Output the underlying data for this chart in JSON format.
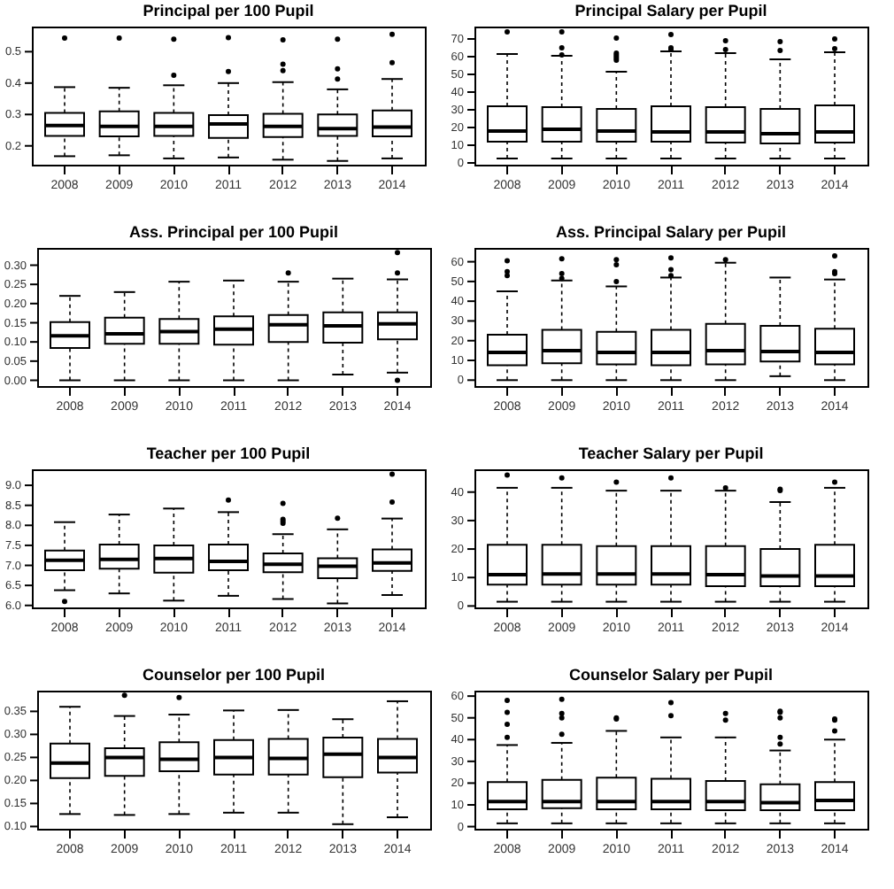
{
  "chart_data": [
    {
      "type": "box",
      "title": "Principal per 100 Pupil",
      "categories": [
        "2008",
        "2009",
        "2010",
        "2011",
        "2012",
        "2013",
        "2014"
      ],
      "ylim": [
        0.14,
        0.58
      ],
      "yticks": [
        {
          "value": 0.2,
          "label": "0.2"
        },
        {
          "value": 0.3,
          "label": "0.3"
        },
        {
          "value": 0.4,
          "label": "0.4"
        },
        {
          "value": 0.5,
          "label": "0.5"
        }
      ],
      "grid": false,
      "boxes": [
        {
          "low": 0.167,
          "q1": 0.232,
          "median": 0.265,
          "q3": 0.305,
          "high": 0.387,
          "outliers": [
            0.543
          ]
        },
        {
          "low": 0.17,
          "q1": 0.23,
          "median": 0.262,
          "q3": 0.31,
          "high": 0.385,
          "outliers": [
            0.543
          ]
        },
        {
          "low": 0.16,
          "q1": 0.232,
          "median": 0.262,
          "q3": 0.305,
          "high": 0.393,
          "outliers": [
            0.425,
            0.54
          ]
        },
        {
          "low": 0.163,
          "q1": 0.225,
          "median": 0.27,
          "q3": 0.298,
          "high": 0.4,
          "outliers": [
            0.437,
            0.545
          ]
        },
        {
          "low": 0.156,
          "q1": 0.228,
          "median": 0.262,
          "q3": 0.302,
          "high": 0.403,
          "outliers": [
            0.44,
            0.46,
            0.538
          ]
        },
        {
          "low": 0.152,
          "q1": 0.232,
          "median": 0.255,
          "q3": 0.3,
          "high": 0.38,
          "outliers": [
            0.413,
            0.445,
            0.54
          ]
        },
        {
          "low": 0.16,
          "q1": 0.23,
          "median": 0.26,
          "q3": 0.313,
          "high": 0.413,
          "outliers": [
            0.465,
            0.555
          ]
        }
      ]
    },
    {
      "type": "box",
      "title": "Principal Salary per Pupil",
      "categories": [
        "2008",
        "2009",
        "2010",
        "2011",
        "2012",
        "2013",
        "2014"
      ],
      "ylim": [
        -1,
        77
      ],
      "yticks": [
        0,
        10,
        20,
        30,
        40,
        50,
        60,
        70
      ],
      "grid": false,
      "boxes": [
        {
          "low": 2.5,
          "q1": 12,
          "median": 18,
          "q3": 32,
          "high": 61.5,
          "outliers": [
            74
          ]
        },
        {
          "low": 2.5,
          "q1": 12,
          "median": 19,
          "q3": 31.5,
          "high": 60.5,
          "outliers": [
            61,
            65,
            74
          ]
        },
        {
          "low": 2.5,
          "q1": 12,
          "median": 18,
          "q3": 30.5,
          "high": 51.5,
          "outliers": [
            58,
            59,
            60,
            61,
            62,
            70.5
          ]
        },
        {
          "low": 2.5,
          "q1": 12,
          "median": 17.5,
          "q3": 32,
          "high": 63,
          "outliers": [
            64,
            65,
            72.5
          ]
        },
        {
          "low": 2.5,
          "q1": 11.5,
          "median": 17.5,
          "q3": 31.5,
          "high": 62,
          "outliers": [
            64,
            69
          ]
        },
        {
          "low": 2.5,
          "q1": 11,
          "median": 16.5,
          "q3": 30.5,
          "high": 58.5,
          "outliers": [
            63.5,
            68.5
          ]
        },
        {
          "low": 2.5,
          "q1": 11.5,
          "median": 17.5,
          "q3": 32.5,
          "high": 62.5,
          "outliers": [
            64.5,
            70
          ]
        }
      ]
    },
    {
      "type": "box",
      "title": "Ass. Principal per 100 Pupil",
      "categories": [
        "2008",
        "2009",
        "2010",
        "2011",
        "2012",
        "2013",
        "2014"
      ],
      "ylim": [
        -0.015,
        0.345
      ],
      "yticks": [
        {
          "value": 0,
          "label": "0.00"
        },
        {
          "value": 0.05,
          "label": "0.05"
        },
        {
          "value": 0.1,
          "label": "0.10"
        },
        {
          "value": 0.15,
          "label": "0.15"
        },
        {
          "value": 0.2,
          "label": "0.20"
        },
        {
          "value": 0.25,
          "label": "0.25"
        },
        {
          "value": 0.3,
          "label": "0.30"
        }
      ],
      "grid": false,
      "boxes": [
        {
          "low": 0,
          "q1": 0.084,
          "median": 0.116,
          "q3": 0.152,
          "high": 0.22
        },
        {
          "low": 0,
          "q1": 0.095,
          "median": 0.121,
          "q3": 0.163,
          "high": 0.23
        },
        {
          "low": 0,
          "q1": 0.095,
          "median": 0.127,
          "q3": 0.16,
          "high": 0.257
        },
        {
          "low": 0,
          "q1": 0.093,
          "median": 0.133,
          "q3": 0.167,
          "high": 0.26
        },
        {
          "low": 0,
          "q1": 0.1,
          "median": 0.145,
          "q3": 0.17,
          "high": 0.257,
          "outliers": [
            0.28
          ]
        },
        {
          "low": 0.015,
          "q1": 0.098,
          "median": 0.142,
          "q3": 0.177,
          "high": 0.265
        },
        {
          "low": 0.02,
          "q1": 0.107,
          "median": 0.147,
          "q3": 0.177,
          "high": 0.263,
          "outliers": [
            0,
            0.28,
            0.333
          ]
        }
      ]
    },
    {
      "type": "box",
      "title": "Ass. Principal Salary per Pupil",
      "categories": [
        "2008",
        "2009",
        "2010",
        "2011",
        "2012",
        "2013",
        "2014"
      ],
      "ylim": [
        -3,
        67
      ],
      "yticks": [
        0,
        10,
        20,
        30,
        40,
        50,
        60
      ],
      "grid": false,
      "boxes": [
        {
          "low": 0,
          "q1": 7.5,
          "median": 14,
          "q3": 23,
          "high": 45,
          "outliers": [
            53,
            55,
            60.5
          ]
        },
        {
          "low": 0,
          "q1": 8.5,
          "median": 15,
          "q3": 25.5,
          "high": 50.5,
          "outliers": [
            51.5,
            54,
            61.5
          ]
        },
        {
          "low": 0,
          "q1": 8,
          "median": 14,
          "q3": 24.5,
          "high": 47.5,
          "outliers": [
            50,
            58.5,
            61
          ]
        },
        {
          "low": 0,
          "q1": 7.5,
          "median": 14,
          "q3": 25.5,
          "high": 52,
          "outliers": [
            53,
            56,
            62
          ]
        },
        {
          "low": 0,
          "q1": 8,
          "median": 15,
          "q3": 28.5,
          "high": 59.5,
          "outliers": [
            61
          ]
        },
        {
          "low": 2,
          "q1": 9.5,
          "median": 14.5,
          "q3": 27.5,
          "high": 52
        },
        {
          "low": 0,
          "q1": 8,
          "median": 14,
          "q3": 26,
          "high": 51,
          "outliers": [
            54,
            55,
            63
          ]
        }
      ]
    },
    {
      "type": "box",
      "title": "Teacher per 100 Pupil",
      "categories": [
        "2008",
        "2009",
        "2010",
        "2011",
        "2012",
        "2013",
        "2014"
      ],
      "ylim": [
        5.95,
        9.4
      ],
      "yticks": [
        {
          "value": 6,
          "label": "6.0"
        },
        {
          "value": 6.5,
          "label": "6.5"
        },
        {
          "value": 7,
          "label": "7.0"
        },
        {
          "value": 7.5,
          "label": "7.5"
        },
        {
          "value": 8,
          "label": "8.0"
        },
        {
          "value": 8.5,
          "label": "8.5"
        },
        {
          "value": 9,
          "label": "9.0"
        }
      ],
      "grid": false,
      "boxes": [
        {
          "low": 6.38,
          "q1": 6.88,
          "median": 7.13,
          "q3": 7.37,
          "high": 8.08,
          "outliers": [
            6.1
          ]
        },
        {
          "low": 6.3,
          "q1": 6.92,
          "median": 7.15,
          "q3": 7.52,
          "high": 8.27
        },
        {
          "low": 6.12,
          "q1": 6.82,
          "median": 7.17,
          "q3": 7.5,
          "high": 8.42
        },
        {
          "low": 6.24,
          "q1": 6.88,
          "median": 7.1,
          "q3": 7.52,
          "high": 8.33,
          "outliers": [
            8.63
          ]
        },
        {
          "low": 6.16,
          "q1": 6.83,
          "median": 7.03,
          "q3": 7.3,
          "high": 7.78,
          "outliers": [
            8.05,
            8.1,
            8.15,
            8.55
          ]
        },
        {
          "low": 6.05,
          "q1": 6.68,
          "median": 6.98,
          "q3": 7.18,
          "high": 7.9,
          "outliers": [
            8.18
          ]
        },
        {
          "low": 6.26,
          "q1": 6.86,
          "median": 7.06,
          "q3": 7.4,
          "high": 8.17,
          "outliers": [
            8.58,
            9.28
          ]
        }
      ]
    },
    {
      "type": "box",
      "title": "Teacher Salary per Pupil",
      "categories": [
        "2008",
        "2009",
        "2010",
        "2011",
        "2012",
        "2013",
        "2014"
      ],
      "ylim": [
        -0.5,
        48
      ],
      "yticks": [
        0,
        10,
        20,
        30,
        40
      ],
      "grid": false,
      "boxes": [
        {
          "low": 1.5,
          "q1": 7.5,
          "median": 11,
          "q3": 21.5,
          "high": 41.5,
          "outliers": [
            46
          ]
        },
        {
          "low": 1.5,
          "q1": 7.5,
          "median": 11.2,
          "q3": 21.5,
          "high": 41.5,
          "outliers": [
            45
          ]
        },
        {
          "low": 1.5,
          "q1": 7.5,
          "median": 11.2,
          "q3": 21,
          "high": 40.5,
          "outliers": [
            43.5
          ]
        },
        {
          "low": 1.5,
          "q1": 7.5,
          "median": 11.2,
          "q3": 21,
          "high": 40.5,
          "outliers": [
            45
          ]
        },
        {
          "low": 1.5,
          "q1": 7,
          "median": 11,
          "q3": 21,
          "high": 40.5,
          "outliers": [
            41.5
          ]
        },
        {
          "low": 1.5,
          "q1": 7,
          "median": 10.5,
          "q3": 20,
          "high": 36.5,
          "outliers": [
            40.5,
            41
          ]
        },
        {
          "low": 1.5,
          "q1": 7,
          "median": 10.5,
          "q3": 21.5,
          "high": 41.5,
          "outliers": [
            43.5
          ]
        }
      ]
    },
    {
      "type": "box",
      "title": "Counselor per 100 Pupil",
      "categories": [
        "2008",
        "2009",
        "2010",
        "2011",
        "2012",
        "2013",
        "2014"
      ],
      "ylim": [
        0.095,
        0.395
      ],
      "yticks": [
        {
          "value": 0.1,
          "label": "0.10"
        },
        {
          "value": 0.15,
          "label": "0.15"
        },
        {
          "value": 0.2,
          "label": "0.20"
        },
        {
          "value": 0.25,
          "label": "0.25"
        },
        {
          "value": 0.3,
          "label": "0.30"
        },
        {
          "value": 0.35,
          "label": "0.35"
        }
      ],
      "grid": false,
      "boxes": [
        {
          "low": 0.127,
          "q1": 0.205,
          "median": 0.238,
          "q3": 0.28,
          "high": 0.36
        },
        {
          "low": 0.125,
          "q1": 0.21,
          "median": 0.25,
          "q3": 0.27,
          "high": 0.34,
          "outliers": [
            0.385
          ]
        },
        {
          "low": 0.127,
          "q1": 0.22,
          "median": 0.246,
          "q3": 0.283,
          "high": 0.343,
          "outliers": [
            0.38
          ]
        },
        {
          "low": 0.13,
          "q1": 0.213,
          "median": 0.25,
          "q3": 0.288,
          "high": 0.352
        },
        {
          "low": 0.13,
          "q1": 0.213,
          "median": 0.248,
          "q3": 0.29,
          "high": 0.353
        },
        {
          "low": 0.105,
          "q1": 0.207,
          "median": 0.257,
          "q3": 0.293,
          "high": 0.333
        },
        {
          "low": 0.12,
          "q1": 0.217,
          "median": 0.25,
          "q3": 0.29,
          "high": 0.372
        }
      ]
    },
    {
      "type": "box",
      "title": "Counselor Salary per Pupil",
      "categories": [
        "2008",
        "2009",
        "2010",
        "2011",
        "2012",
        "2013",
        "2014"
      ],
      "ylim": [
        -1,
        62.5
      ],
      "yticks": [
        0,
        10,
        20,
        30,
        40,
        50,
        60
      ],
      "grid": false,
      "boxes": [
        {
          "low": 1.5,
          "q1": 8,
          "median": 11.5,
          "q3": 20.5,
          "high": 37.5,
          "outliers": [
            41,
            47,
            52.5,
            58
          ]
        },
        {
          "low": 1.5,
          "q1": 8.5,
          "median": 11.5,
          "q3": 21.5,
          "high": 38.5,
          "outliers": [
            42.5,
            50,
            52,
            58.5
          ]
        },
        {
          "low": 1.5,
          "q1": 8,
          "median": 11.5,
          "q3": 22.5,
          "high": 44,
          "outliers": [
            49.5,
            50
          ]
        },
        {
          "low": 1.5,
          "q1": 8,
          "median": 11.5,
          "q3": 22,
          "high": 41,
          "outliers": [
            51,
            57
          ]
        },
        {
          "low": 1.5,
          "q1": 7.5,
          "median": 11.5,
          "q3": 21,
          "high": 41,
          "outliers": [
            49,
            52
          ]
        },
        {
          "low": 1.5,
          "q1": 7.5,
          "median": 11,
          "q3": 19.5,
          "high": 35,
          "outliers": [
            38,
            41,
            50,
            52.5,
            53
          ]
        },
        {
          "low": 1.5,
          "q1": 7.5,
          "median": 12,
          "q3": 20.5,
          "high": 40,
          "outliers": [
            44,
            49,
            49.5
          ]
        }
      ]
    }
  ]
}
